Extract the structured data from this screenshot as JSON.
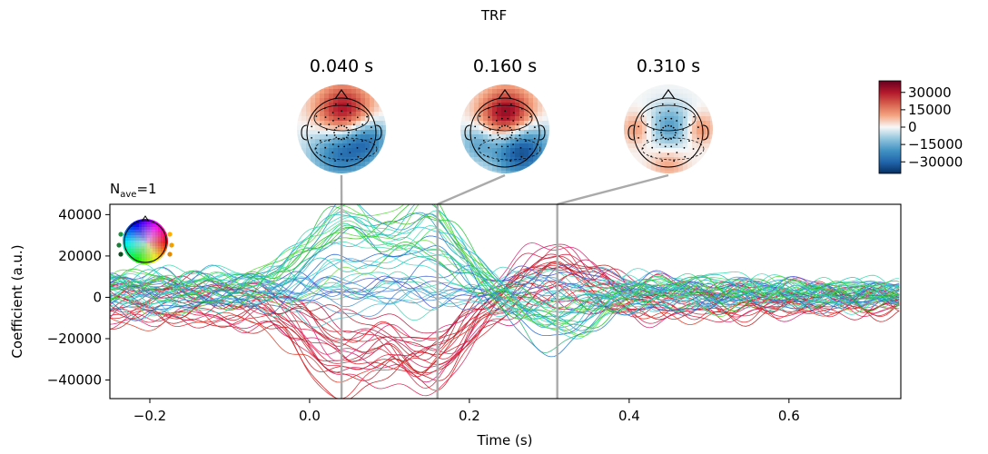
{
  "figure": {
    "suptitle": "TRF",
    "nave_main": "N",
    "nave_sub": "ave",
    "nave_value": "=1"
  },
  "chart_data": {
    "type": "line",
    "title": "TRF",
    "xlabel": "Time (s)",
    "ylabel": "Coefficient (a.u.)",
    "xlim": [
      -0.25,
      0.74
    ],
    "ylim": [
      -49000,
      45000
    ],
    "xticks": [
      -0.2,
      0.0,
      0.2,
      0.4,
      0.6
    ],
    "xtick_labels": [
      "−0.2",
      "0.0",
      "0.2",
      "0.4",
      "0.6"
    ],
    "yticks": [
      -40000,
      -20000,
      0,
      20000,
      40000
    ],
    "ytick_labels": [
      "−40000",
      "−20000",
      "0",
      "20000",
      "40000"
    ],
    "grid": false,
    "n_channels": 64,
    "time_markers": [
      0.04,
      0.16,
      0.31
    ],
    "topomap_titles": [
      "0.040 s",
      "0.160 s",
      "0.310 s"
    ],
    "colorbar": {
      "range": [
        -40000,
        40000
      ],
      "ticks": [
        30000,
        15000,
        0,
        -15000,
        -30000
      ],
      "tick_labels": [
        "30000",
        "15000",
        "0",
        "−15000",
        "−30000"
      ],
      "cmap": [
        "#053061",
        "#2166ac",
        "#4393c3",
        "#92c5de",
        "#f7f7f7",
        "#f4a582",
        "#d6604d",
        "#b2182b",
        "#67001f"
      ]
    },
    "marker_line_color": "#aaaaaa"
  }
}
